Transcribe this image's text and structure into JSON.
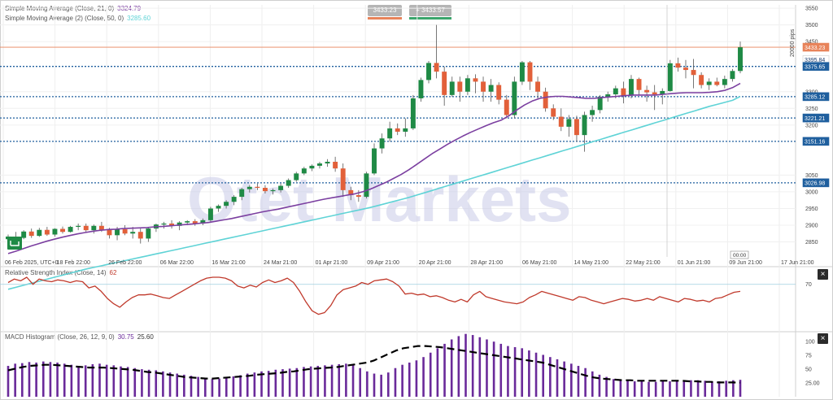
{
  "chart_data": [
    {
      "type": "candlestick",
      "pane": "price",
      "indicators": [
        {
          "name": "Simple Moving Average (Close, 21, 0)",
          "value": "3324.79",
          "color": "#7b3fa0"
        },
        {
          "name": "Simple Moving Average (2) (Close, 50, 0)",
          "value": "3285.60",
          "color": "#5fd3d6"
        }
      ],
      "top_boxes": [
        {
          "text": "3433.23",
          "bg": "#b5b5b5",
          "underline": "#e8835a"
        },
        {
          "text": "+ 3433.57",
          "bg": "#b5b5b5",
          "underline": "#3aa56b"
        }
      ],
      "yaxis_ticks": [
        "3550",
        "3500",
        "3450",
        "3300",
        "3250",
        "3200",
        "3050",
        "3000",
        "2950",
        "2900",
        "2850"
      ],
      "ylim": [
        2805,
        3560
      ],
      "ylabel_note": "20000 pips",
      "price_tags": [
        {
          "text": "3433.23",
          "value": 3433.23,
          "bg": "#e8835a",
          "color": "#ffffff"
        },
        {
          "text": "3395.84",
          "value": 3395.84,
          "bg": "#ffffff",
          "color": "#1a3a6b"
        },
        {
          "text": "3375.65",
          "value": 3375.65,
          "bg": "#1f5f9e",
          "color": "#ffffff"
        },
        {
          "text": "3285.12",
          "value": 3285.12,
          "bg": "#1f5f9e",
          "color": "#ffffff"
        },
        {
          "text": "3221.21",
          "value": 3221.21,
          "bg": "#1f5f9e",
          "color": "#ffffff"
        },
        {
          "text": "3151.16",
          "value": 3151.16,
          "bg": "#1f5f9e",
          "color": "#ffffff"
        },
        {
          "text": "3026.98",
          "value": 3026.98,
          "bg": "#1f5f9e",
          "color": "#ffffff"
        }
      ],
      "hlines": [
        3375.65,
        3285.12,
        3221.21,
        3151.16,
        3026.98
      ],
      "current_price_line": 3433.23,
      "xaxis_labels": [
        "06 Feb 2025, UTC+0",
        "18 Feb 22:00",
        "26 Feb 22:00",
        "06 Mar 22:00",
        "16 Mar 21:00",
        "24 Mar 21:00",
        "01 Apr 21:00",
        "09 Apr 21:00",
        "20 Apr 21:00",
        "28 Apr 21:00",
        "06 May 21:00",
        "14 May 21:00",
        "22 May 21:00",
        "01 Jun 21:00",
        "09 Jun 21:00",
        "17 Jun 21:00"
      ],
      "crosshair_time": "00:00",
      "candles": [
        [
          2858,
          2872,
          2845,
          2866
        ],
        [
          2866,
          2880,
          2852,
          2862
        ],
        [
          2862,
          2885,
          2858,
          2881
        ],
        [
          2881,
          2890,
          2862,
          2868
        ],
        [
          2868,
          2892,
          2865,
          2886
        ],
        [
          2886,
          2895,
          2868,
          2872
        ],
        [
          2872,
          2891,
          2866,
          2889
        ],
        [
          2889,
          2896,
          2875,
          2880
        ],
        [
          2880,
          2898,
          2878,
          2895
        ],
        [
          2895,
          2905,
          2885,
          2898
        ],
        [
          2898,
          2905,
          2880,
          2885
        ],
        [
          2885,
          2902,
          2875,
          2898
        ],
        [
          2898,
          2910,
          2880,
          2886
        ],
        [
          2886,
          2892,
          2860,
          2870
        ],
        [
          2870,
          2895,
          2855,
          2888
        ],
        [
          2888,
          2900,
          2870,
          2875
        ],
        [
          2875,
          2895,
          2860,
          2880
        ],
        [
          2880,
          2890,
          2845,
          2860
        ],
        [
          2860,
          2895,
          2850,
          2890
        ],
        [
          2890,
          2905,
          2880,
          2902
        ],
        [
          2902,
          2910,
          2890,
          2905
        ],
        [
          2905,
          2915,
          2890,
          2898
        ],
        [
          2898,
          2912,
          2885,
          2908
        ],
        [
          2908,
          2915,
          2900,
          2912
        ],
        [
          2912,
          2918,
          2898,
          2905
        ],
        [
          2905,
          2920,
          2900,
          2915
        ],
        [
          2915,
          2955,
          2910,
          2950
        ],
        [
          2950,
          2962,
          2940,
          2958
        ],
        [
          2958,
          2975,
          2950,
          2970
        ],
        [
          2970,
          2990,
          2960,
          2985
        ],
        [
          2985,
          3012,
          2975,
          3008
        ],
        [
          3008,
          3020,
          2998,
          3015
        ],
        [
          3015,
          3025,
          3005,
          3012
        ],
        [
          3012,
          3020,
          2995,
          3002
        ],
        [
          3002,
          3010,
          2992,
          3005
        ],
        [
          3005,
          3025,
          2998,
          3018
        ],
        [
          3018,
          3040,
          3012,
          3035
        ],
        [
          3035,
          3060,
          3030,
          3055
        ],
        [
          3055,
          3075,
          3050,
          3070
        ],
        [
          3070,
          3082,
          3062,
          3078
        ],
        [
          3078,
          3090,
          3070,
          3085
        ],
        [
          3085,
          3098,
          3075,
          3090
        ],
        [
          3090,
          3105,
          3060,
          3070
        ],
        [
          3070,
          3085,
          2985,
          3005
        ],
        [
          3005,
          3015,
          2975,
          2990
        ],
        [
          2990,
          3005,
          2970,
          2985
        ],
        [
          2985,
          3060,
          2980,
          3055
        ],
        [
          3055,
          3145,
          3050,
          3130
        ],
        [
          3130,
          3175,
          3115,
          3160
        ],
        [
          3160,
          3210,
          3150,
          3190
        ],
        [
          3190,
          3205,
          3170,
          3180
        ],
        [
          3180,
          3220,
          3165,
          3190
        ],
        [
          3190,
          3290,
          3185,
          3280
        ],
        [
          3280,
          3342,
          3270,
          3335
        ],
        [
          3335,
          3392,
          3325,
          3386
        ],
        [
          3386,
          3500,
          3340,
          3360
        ],
        [
          3360,
          3375,
          3258,
          3290
        ],
        [
          3290,
          3345,
          3285,
          3330
        ],
        [
          3330,
          3345,
          3270,
          3300
        ],
        [
          3300,
          3350,
          3290,
          3340
        ],
        [
          3340,
          3352,
          3295,
          3330
        ],
        [
          3330,
          3345,
          3270,
          3300
        ],
        [
          3300,
          3338,
          3270,
          3320
        ],
        [
          3320,
          3328,
          3262,
          3276
        ],
        [
          3276,
          3290,
          3220,
          3230
        ],
        [
          3230,
          3345,
          3220,
          3330
        ],
        [
          3330,
          3392,
          3320,
          3388
        ],
        [
          3388,
          3392,
          3305,
          3330
        ],
        [
          3330,
          3345,
          3280,
          3300
        ],
        [
          3300,
          3312,
          3240,
          3250
        ],
        [
          3250,
          3262,
          3215,
          3225
        ],
        [
          3225,
          3250,
          3182,
          3195
        ],
        [
          3195,
          3230,
          3165,
          3218
        ],
        [
          3218,
          3228,
          3150,
          3170
        ],
        [
          3170,
          3240,
          3120,
          3230
        ],
        [
          3230,
          3258,
          3210,
          3245
        ],
        [
          3245,
          3290,
          3235,
          3285
        ],
        [
          3285,
          3300,
          3270,
          3292
        ],
        [
          3292,
          3318,
          3280,
          3310
        ],
        [
          3310,
          3330,
          3265,
          3288
        ],
        [
          3288,
          3350,
          3280,
          3338
        ],
        [
          3338,
          3342,
          3290,
          3305
        ],
        [
          3305,
          3318,
          3270,
          3298
        ],
        [
          3298,
          3320,
          3245,
          3292
        ],
        [
          3292,
          3310,
          3262,
          3302
        ],
        [
          3302,
          3395,
          3300,
          3385
        ],
        [
          3385,
          3402,
          3360,
          3372
        ],
        [
          3372,
          3395,
          3340,
          3365
        ],
        [
          3365,
          3398,
          3310,
          3350
        ],
        [
          3350,
          3358,
          3310,
          3320
        ],
        [
          3320,
          3340,
          3305,
          3330
        ],
        [
          3330,
          3342,
          3316,
          3320
        ],
        [
          3320,
          3348,
          3310,
          3338
        ],
        [
          3338,
          3368,
          3330,
          3362
        ],
        [
          3362,
          3450,
          3355,
          3433
        ]
      ],
      "sma21": [
        2815,
        2822,
        2830,
        2838,
        2845,
        2852,
        2858,
        2864,
        2869,
        2874,
        2878,
        2882,
        2885,
        2887,
        2888,
        2890,
        2891,
        2892,
        2893,
        2895,
        2896,
        2898,
        2900,
        2902,
        2904,
        2906,
        2908,
        2912,
        2916,
        2920,
        2925,
        2930,
        2935,
        2940,
        2944,
        2948,
        2953,
        2958,
        2963,
        2968,
        2973,
        2978,
        2982,
        2986,
        2990,
        2994,
        3000,
        3008,
        3018,
        3028,
        3040,
        3052,
        3066,
        3082,
        3098,
        3114,
        3128,
        3142,
        3155,
        3167,
        3178,
        3188,
        3198,
        3207,
        3215,
        3228,
        3245,
        3260,
        3272,
        3280,
        3284,
        3286,
        3286,
        3284,
        3282,
        3280,
        3280,
        3282,
        3284,
        3286,
        3288,
        3290,
        3290,
        3290,
        3290,
        3292,
        3294,
        3296,
        3297,
        3297,
        3297,
        3298,
        3300,
        3304,
        3312,
        3324.79
      ],
      "sma50": [
        2708,
        2714,
        2720,
        2726,
        2732,
        2738,
        2744,
        2750,
        2756,
        2762,
        2768,
        2773,
        2778,
        2783,
        2788,
        2793,
        2798,
        2803,
        2808,
        2813,
        2818,
        2823,
        2828,
        2833,
        2838,
        2843,
        2848,
        2853,
        2858,
        2863,
        2868,
        2873,
        2878,
        2883,
        2888,
        2893,
        2898,
        2903,
        2908,
        2913,
        2918,
        2923,
        2928,
        2933,
        2938,
        2943,
        2948,
        2953,
        2959,
        2965,
        2971,
        2977,
        2983,
        2990,
        2997,
        3004,
        3011,
        3018,
        3025,
        3032,
        3039,
        3046,
        3053,
        3060,
        3067,
        3074,
        3081,
        3088,
        3095,
        3102,
        3109,
        3116,
        3123,
        3130,
        3137,
        3144,
        3151,
        3158,
        3165,
        3172,
        3179,
        3186,
        3193,
        3200,
        3207,
        3214,
        3221,
        3228,
        3235,
        3242,
        3249,
        3256,
        3262,
        3268,
        3274,
        3285.6
      ]
    },
    {
      "type": "line",
      "pane": "rsi",
      "title": "Relative Strength Index (Close, 14)",
      "value": "62",
      "color": "#c0392b",
      "ylim": [
        20,
        90
      ],
      "yaxis_ticks": [
        "70"
      ],
      "level": 70,
      "values": [
        72,
        76,
        74,
        78,
        70,
        76,
        74,
        73,
        75,
        74,
        72,
        74,
        73,
        66,
        68,
        62,
        54,
        48,
        44,
        50,
        55,
        58,
        58,
        59,
        57,
        55,
        54,
        58,
        62,
        66,
        70,
        74,
        77,
        78,
        78,
        77,
        74,
        68,
        66,
        69,
        67,
        72,
        75,
        72,
        74,
        77,
        72,
        62,
        50,
        40,
        36,
        38,
        46,
        58,
        64,
        66,
        68,
        72,
        70,
        74,
        75,
        76,
        73,
        68,
        59,
        60,
        58,
        59,
        56,
        57,
        55,
        52,
        50,
        53,
        50,
        58,
        62,
        56,
        54,
        52,
        50,
        49,
        48,
        50,
        55,
        58,
        62,
        60,
        58,
        56,
        54,
        52,
        56,
        55,
        52,
        50,
        48,
        50,
        52,
        54,
        53,
        51,
        52,
        54,
        52,
        56,
        54,
        52,
        50,
        54,
        53,
        51,
        52,
        50,
        54,
        55,
        58,
        61,
        62
      ]
    },
    {
      "type": "bar+line",
      "pane": "macd",
      "title": "MACD Histogram (Close, 26, 12, 9, 0)",
      "value1": "30.75",
      "value2": "25.60",
      "bar_color": "#6a2a9a",
      "line_color": "#000000",
      "ylim": [
        0,
        118
      ],
      "yaxis_ticks": [
        "100",
        "75",
        "50",
        "25.00"
      ],
      "histogram": [
        56,
        60,
        61,
        63,
        62,
        64,
        63,
        62,
        60,
        58,
        56,
        57,
        59,
        60,
        58,
        57,
        55,
        54,
        52,
        50,
        49,
        48,
        46,
        44,
        42,
        40,
        38,
        36,
        34,
        32,
        33,
        35,
        37,
        39,
        42,
        44,
        46,
        47,
        49,
        50,
        51,
        52,
        54,
        55,
        56,
        57,
        58,
        59,
        60,
        58,
        52,
        46,
        42,
        40,
        44,
        52,
        58,
        62,
        66,
        72,
        80,
        88,
        96,
        104,
        110,
        114,
        112,
        108,
        104,
        100,
        96,
        92,
        90,
        88,
        84,
        80,
        76,
        72,
        68,
        64,
        60,
        56,
        52,
        46,
        40,
        36,
        32,
        30,
        29,
        28,
        28,
        27,
        27,
        28,
        28,
        28,
        29,
        30,
        30,
        29,
        28,
        28,
        29,
        30,
        30.75
      ],
      "signal": [
        48,
        51,
        54,
        56,
        57,
        58,
        58,
        57,
        56,
        55,
        54,
        53,
        53,
        53,
        52,
        51,
        50,
        49,
        47,
        45,
        44,
        42,
        40,
        38,
        36,
        35,
        34,
        33,
        33,
        34,
        35,
        36,
        37,
        38,
        40,
        41,
        42,
        43,
        45,
        46,
        48,
        50,
        51,
        52,
        53,
        54,
        56,
        58,
        60,
        62,
        66,
        72,
        78,
        84,
        88,
        90,
        92,
        92,
        91,
        90,
        88,
        86,
        84,
        82,
        80,
        78,
        76,
        74,
        72,
        70,
        68,
        66,
        64,
        62,
        58,
        54,
        50,
        46,
        42,
        38,
        35,
        33,
        32,
        31,
        30,
        30,
        29,
        29,
        29,
        29,
        29,
        29,
        29,
        28,
        28,
        27,
        27,
        26,
        26,
        26,
        25.6
      ]
    }
  ],
  "watermark": "Otet Markets",
  "panes": {
    "rsi_close": "×",
    "macd_close": "×"
  }
}
